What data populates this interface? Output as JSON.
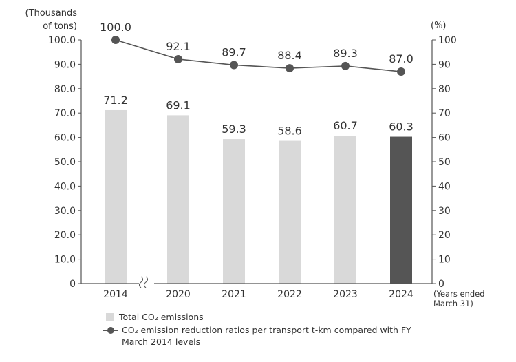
{
  "chart_data": {
    "type": "bar+line",
    "categories": [
      "2014",
      "2020",
      "2021",
      "2022",
      "2023",
      "2024"
    ],
    "axis_break_after": "2014",
    "ylabel_left": "(Thousands of tons)",
    "ylabel_left_lines": [
      "(Thousands",
      "of tons)"
    ],
    "ylabel_right": "(%)",
    "xlabel_lines": [
      "(Years ended",
      "March 31)"
    ],
    "ylim_left": [
      0,
      100
    ],
    "ylim_right": [
      0,
      100
    ],
    "yticks_left": [
      "0",
      "10.0",
      "20.0",
      "30.0",
      "40.0",
      "50.0",
      "60.0",
      "70.0",
      "80.0",
      "90.0",
      "100.0"
    ],
    "yticks_right": [
      "0",
      "10",
      "20",
      "30",
      "40",
      "50",
      "60",
      "70",
      "80",
      "90",
      "100"
    ],
    "grid": false,
    "series": [
      {
        "name": "Total CO2 emissions",
        "display_name": "Total CO₂ emissions",
        "type": "bar",
        "axis": "left",
        "values": [
          71.2,
          69.1,
          59.3,
          58.6,
          60.7,
          60.3
        ],
        "labels": [
          "71.2",
          "69.1",
          "59.3",
          "58.6",
          "60.7",
          "60.3"
        ],
        "color": "#d9d9d9",
        "highlight_color": "#555555",
        "highlight_index": 5
      },
      {
        "name": "CO2 emission reduction ratios per transport t-km compared with FY March 2014 levels",
        "display_name": "CO₂ emission reduction ratios per transport t-km compared with FY March 2014 levels",
        "type": "line",
        "axis": "right",
        "values": [
          100.0,
          92.1,
          89.7,
          88.4,
          89.3,
          87.0
        ],
        "labels": [
          "100.0",
          "92.1",
          "89.7",
          "88.4",
          "89.3",
          "87.0"
        ],
        "color": "#555555"
      }
    ],
    "legend_position": "bottom-left"
  }
}
